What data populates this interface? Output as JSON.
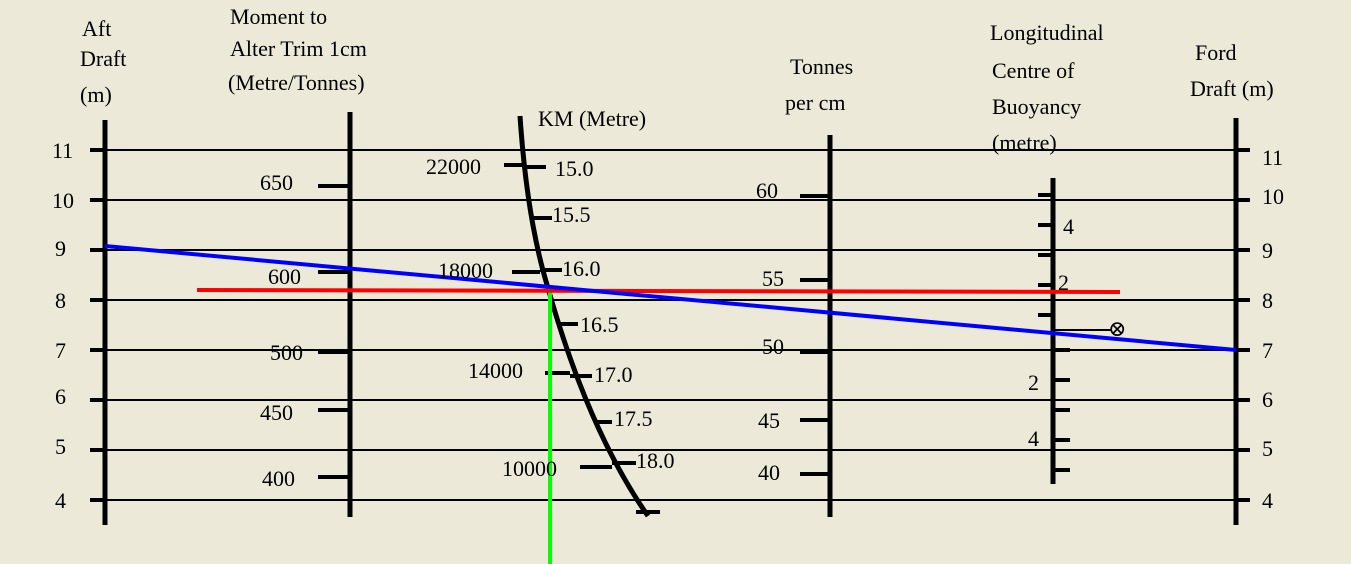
{
  "headers": {
    "aft": [
      "Aft",
      "Draft",
      "(m)"
    ],
    "mct": [
      "Moment to",
      "Alter Trim 1cm",
      "(Metre/Tonnes)"
    ],
    "km": [
      "KM (Metre)"
    ],
    "tpc": [
      "Tonnes",
      "per cm"
    ],
    "lcb": [
      "Longitudinal",
      "Centre of",
      "Buoyancy",
      "(metre)"
    ],
    "ford": [
      "Ford",
      "Draft (m)"
    ]
  },
  "scales": {
    "aft_draft": [
      "11",
      "10",
      "9",
      "8",
      "7",
      "6",
      "5",
      "4"
    ],
    "ford_draft": [
      "11",
      "10",
      "9",
      "8",
      "7",
      "6",
      "5",
      "4"
    ],
    "mct": [
      "650",
      "600",
      "500",
      "450",
      "400"
    ],
    "displacement": [
      "22000",
      "18000",
      "14000",
      "10000"
    ],
    "km": [
      "15.0",
      "15.5",
      "16.0",
      "16.5",
      "17.0",
      "17.5",
      "18.0"
    ],
    "tpc": [
      "60",
      "55",
      "50",
      "45",
      "40"
    ],
    "lcb_fwd": [
      "4",
      "2"
    ],
    "lcb_aft": [
      "2",
      "4"
    ],
    "lcb_zero": "⊗"
  },
  "colors": {
    "background": "#ece9d8",
    "scale_line": "#000000",
    "blue_line": "#0000ff",
    "red_line": "#ff0000",
    "green_line": "#00ff00"
  }
}
